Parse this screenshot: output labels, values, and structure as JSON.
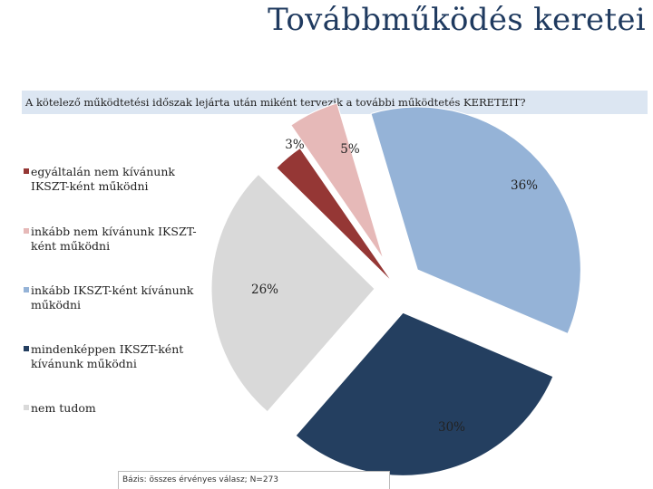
{
  "slide": {
    "title": "Továbbműködés keretei",
    "question": "A kötelező működtetési időszak lejárta után miként tervezik a további működtetés KERETEIT?",
    "base_note": "Bázis: összes érvényes válasz; N=273"
  },
  "chart_data": {
    "type": "pie",
    "title": "",
    "legend_position": "left",
    "slices": [
      {
        "name": "egyáltalán nem kívánunk IKSZT-ként működni",
        "value": 3,
        "label": "3%",
        "color": "#953735"
      },
      {
        "name": "inkább nem kívánunk IKSZT-ként működni",
        "value": 5,
        "label": "5%",
        "color": "#e6b9b8"
      },
      {
        "name": "inkább IKSZT-ként kívánunk működni",
        "value": 36,
        "label": "36%",
        "color": "#95b3d7"
      },
      {
        "name": "mindenképpen IKSZT-ként kívánunk működni",
        "value": 30,
        "label": "30%",
        "color": "#243f60"
      },
      {
        "name": "nem tudom",
        "value": 26,
        "label": "26%",
        "color": "#d9d9d9"
      }
    ]
  }
}
